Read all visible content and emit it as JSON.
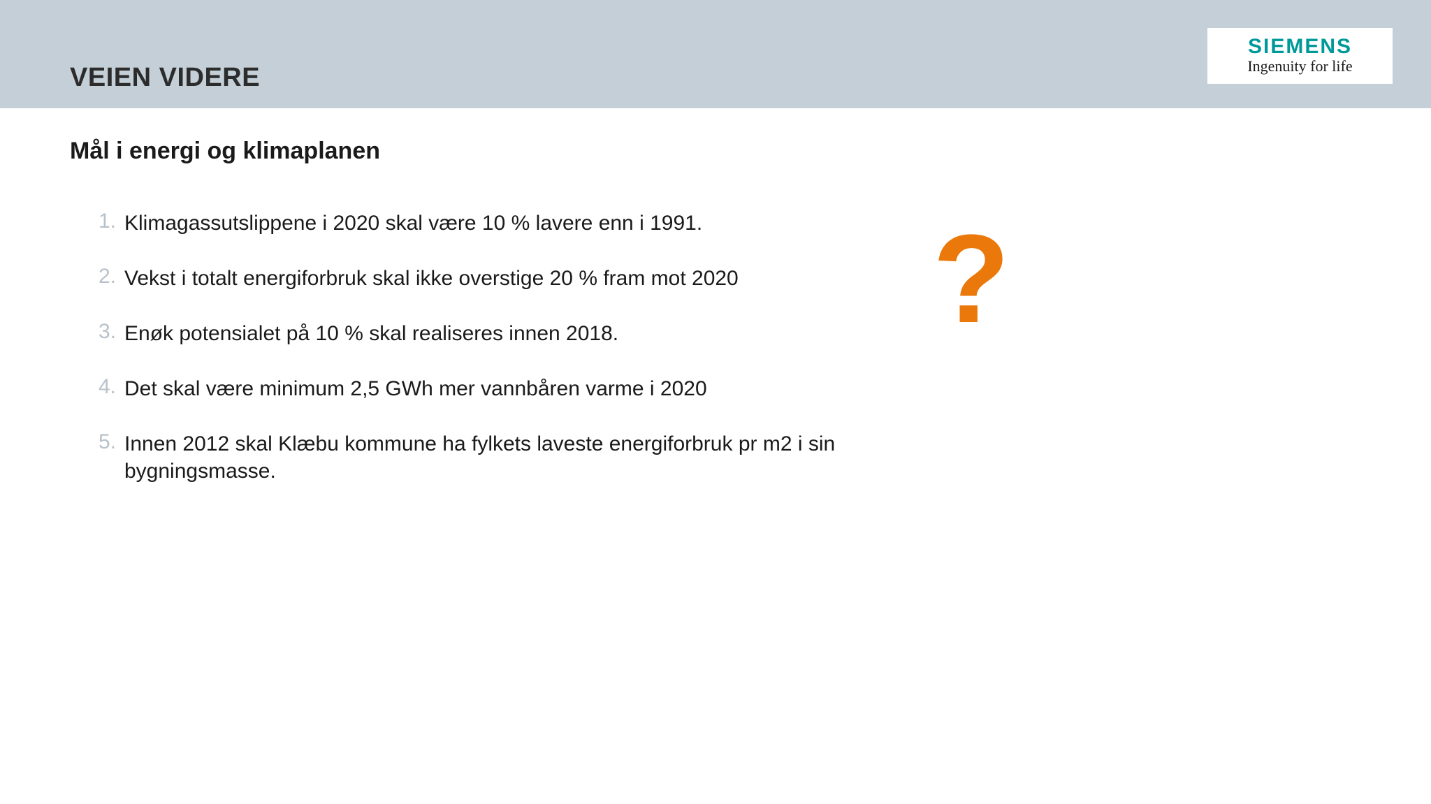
{
  "header": {
    "band_color": "#c4cfd7",
    "title": "VEIEN VIDERE",
    "title_color": "#2c2c2c",
    "title_fontsize": 38
  },
  "logo": {
    "brand": "SIEMENS",
    "tagline": "Ingenuity for life",
    "brand_color": "#009999",
    "bg_color": "#ffffff"
  },
  "subtitle": {
    "text": "Mål i energi og klimaplanen",
    "fontsize": 34,
    "color": "#1a1a1a"
  },
  "list": {
    "number_color": "#b8c2ca",
    "text_color": "#1a1a1a",
    "fontsize": 30,
    "items": [
      {
        "num": "1.",
        "text": "Klimagassutslippene i 2020 skal være 10 % lavere enn i 1991."
      },
      {
        "num": "2.",
        "text": "Vekst i totalt energiforbruk skal ikke overstige 20 % fram mot 2020"
      },
      {
        "num": "3.",
        "text": "Enøk potensialet på 10 % skal realiseres innen 2018."
      },
      {
        "num": "4.",
        "text": "Det skal være minimum 2,5 GWh mer vannbåren varme i 2020"
      },
      {
        "num": "5.",
        "text": "Innen 2012 skal Klæbu kommune ha fylkets laveste energiforbruk pr m2 i sin bygningsmasse."
      }
    ]
  },
  "question_mark": {
    "glyph": "?",
    "color": "#eb780a",
    "fontsize": 180
  },
  "background_color": "#ffffff"
}
